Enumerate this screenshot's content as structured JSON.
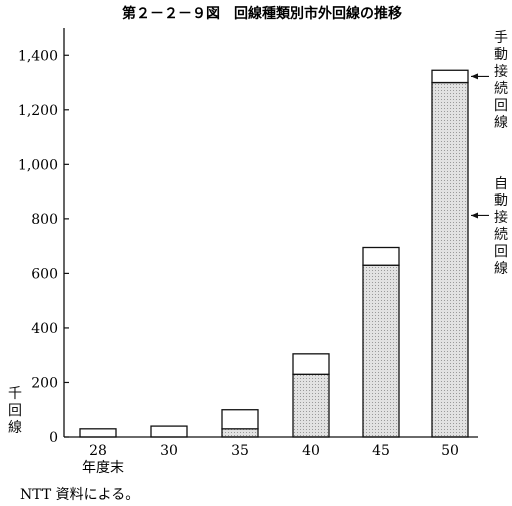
{
  "chart_data": {
    "type": "bar",
    "title": "第２－２－９図　回線種類別市外回線の推移",
    "categories": [
      "28",
      "30",
      "35",
      "40",
      "45",
      "50"
    ],
    "x_unit_label": "年度末",
    "y_unit_label": "千回線",
    "ylim": [
      0,
      1500
    ],
    "yticks": [
      0,
      200,
      400,
      600,
      800,
      1000,
      1200,
      1400
    ],
    "ytick_labels": [
      "0",
      "200",
      "400",
      "600",
      "800",
      "1,000",
      "1,200",
      "1,400"
    ],
    "series": [
      {
        "name": "自動接続回線",
        "values": [
          0,
          0,
          30,
          230,
          630,
          1300
        ],
        "fill": "#e2e2e2"
      },
      {
        "name": "手動接続回線",
        "values": [
          30,
          40,
          70,
          75,
          65,
          45
        ],
        "fill": "#ffffff"
      }
    ],
    "stacked": true,
    "legend_placement": "right",
    "grid": false,
    "source": "NTT 資料による。"
  }
}
